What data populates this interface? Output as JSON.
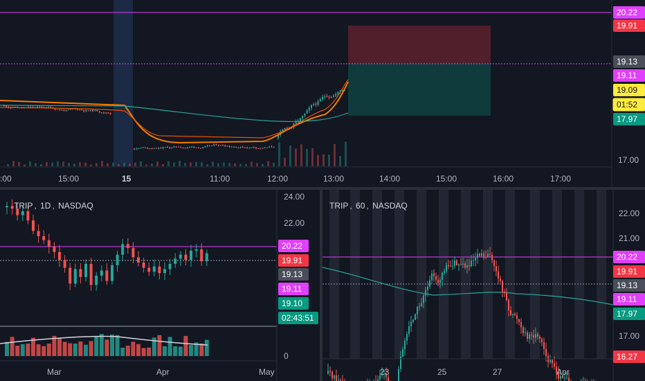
{
  "colors": {
    "background": "#131722",
    "up": "#26a69a",
    "down": "#ef5350",
    "magenta": "#e040fb",
    "yellow": "#ffeb3b",
    "green_badge": "#089981",
    "red_badge": "#f23645",
    "gray_badge": "#4a4e59",
    "teal_ma": "#26a69a",
    "orange_ma": "#f57c00",
    "red_ma": "#e65100",
    "session_band": "#1b2a45",
    "weekend_band": "#2a2e39"
  },
  "top_chart": {
    "price_labels": [
      {
        "value": "20.22",
        "kind": "magenta"
      },
      {
        "value": "19.91",
        "kind": "red"
      },
      {
        "value": "19.13",
        "kind": "gray"
      },
      {
        "value": "19.11",
        "kind": "magenta"
      },
      {
        "value": "19.09",
        "kind": "yellow"
      },
      {
        "value": "01:52",
        "kind": "yellow-outline"
      },
      {
        "value": "17.97",
        "kind": "green"
      }
    ],
    "axis_tick": "17.00",
    "time_labels": [
      ":00",
      "15:00",
      "15",
      "11:00",
      "12:00",
      "13:00",
      "14:00",
      "15:00",
      "16:00",
      "17:00"
    ]
  },
  "chart_data": [
    {
      "type": "candlestick",
      "title": "",
      "interval": "intraday",
      "y_ticks": [
        "17.00"
      ],
      "x_ticks": [
        ":00",
        "15:00",
        "15",
        "11:00",
        "12:00",
        "13:00",
        "14:00",
        "15:00",
        "16:00",
        "17:00"
      ],
      "horizontal_lines": [
        20.22,
        19.13
      ],
      "position_tool": {
        "entry": 19.13,
        "target": 19.91,
        "stop": 17.97
      },
      "last_price": 19.09,
      "countdown": "01:52"
    },
    {
      "type": "candlestick",
      "symbol": "TRIP",
      "interval": "1D",
      "exchange": "NASDAQ",
      "y_ticks": [
        "24.00",
        "22.00",
        "0"
      ],
      "x_ticks": [
        "Mar",
        "Apr",
        "May"
      ],
      "price_labels": [
        {
          "value": "20.22",
          "kind": "magenta"
        },
        {
          "value": "19.91",
          "kind": "red"
        },
        {
          "value": "19.13",
          "kind": "gray"
        },
        {
          "value": "19.11",
          "kind": "magenta"
        },
        {
          "value": "19.10",
          "kind": "green"
        },
        {
          "value": "02:43:51",
          "kind": "green"
        }
      ]
    },
    {
      "type": "candlestick",
      "symbol": "TRIP",
      "interval": "60",
      "exchange": "NASDAQ",
      "y_ticks": [
        "22.00",
        "21.00",
        "17.00"
      ],
      "x_ticks": [
        "23",
        "25",
        "27",
        "Apr"
      ],
      "price_labels": [
        {
          "value": "20.22",
          "kind": "magenta"
        },
        {
          "value": "19.91",
          "kind": "red"
        },
        {
          "value": "19.13",
          "kind": "gray"
        },
        {
          "value": "19.11",
          "kind": "magenta"
        },
        {
          "value": "17.97",
          "kind": "green"
        },
        {
          "value": "16.27",
          "kind": "red"
        }
      ]
    }
  ],
  "daily_chart": {
    "symbol": "TRIP",
    "interval": "1D",
    "exchange": "NASDAQ",
    "y_ticks": [
      "24.00",
      "22.00",
      "0"
    ],
    "x_labels": [
      "Mar",
      "Apr",
      "May"
    ],
    "price_labels": [
      {
        "value": "20.22",
        "kind": "magenta"
      },
      {
        "value": "19.91",
        "kind": "red"
      },
      {
        "value": "19.13",
        "kind": "gray"
      },
      {
        "value": "19.11",
        "kind": "magenta"
      },
      {
        "value": "19.10",
        "kind": "green"
      },
      {
        "value": "02:43:51",
        "kind": "green"
      }
    ]
  },
  "hourly_chart": {
    "symbol": "TRIP",
    "interval": "60",
    "exchange": "NASDAQ",
    "y_ticks": [
      "22.00",
      "21.00",
      "17.00"
    ],
    "x_labels": [
      "23",
      "25",
      "27",
      "Apr"
    ],
    "price_labels": [
      {
        "value": "20.22",
        "kind": "magenta"
      },
      {
        "value": "19.91",
        "kind": "red"
      },
      {
        "value": "19.13",
        "kind": "gray"
      },
      {
        "value": "19.11",
        "kind": "magenta"
      },
      {
        "value": "17.97",
        "kind": "green"
      },
      {
        "value": "16.27",
        "kind": "red"
      }
    ]
  },
  "legend_sep": ","
}
